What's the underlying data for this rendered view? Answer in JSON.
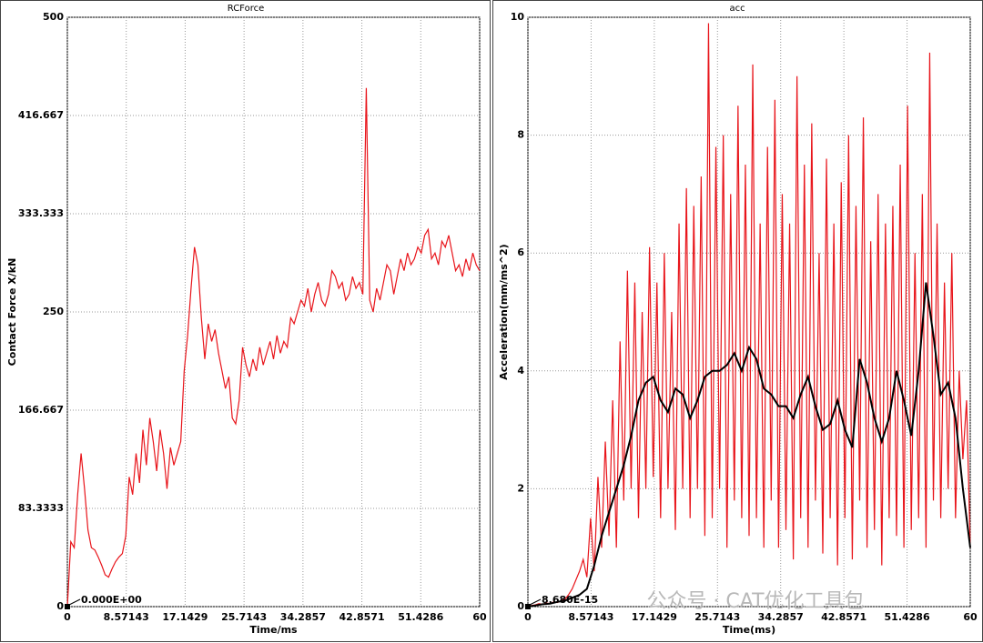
{
  "chart_data": [
    {
      "type": "line",
      "title": "RCForce",
      "xlabel": "Time/ms",
      "ylabel": "Contact Force X/kN",
      "annotation": "0.000E+00",
      "xlim": [
        0,
        60
      ],
      "xticks": [
        0,
        8.57143,
        17.1429,
        25.7143,
        34.2857,
        42.8571,
        51.4286,
        60
      ],
      "ylim": [
        0,
        500
      ],
      "yticks": [
        0,
        83.3333,
        166.667,
        250,
        333.333,
        416.667,
        500
      ],
      "grid": true,
      "x": [
        0,
        0.5,
        1,
        1.5,
        2,
        2.5,
        3,
        3.5,
        4,
        4.5,
        5,
        5.5,
        6,
        6.5,
        7,
        7.5,
        8,
        8.5,
        9,
        9.5,
        10,
        10.5,
        11,
        11.5,
        12,
        12.5,
        13,
        13.5,
        14,
        14.5,
        15,
        15.5,
        16,
        16.5,
        17,
        17.5,
        18,
        18.5,
        19,
        19.5,
        20,
        20.5,
        21,
        21.5,
        22,
        22.5,
        23,
        23.5,
        24,
        24.5,
        25,
        25.5,
        26,
        26.5,
        27,
        27.5,
        28,
        28.5,
        29,
        29.5,
        30,
        30.5,
        31,
        31.5,
        32,
        32.5,
        33,
        33.5,
        34,
        34.5,
        35,
        35.5,
        36,
        36.5,
        37,
        37.5,
        38,
        38.5,
        39,
        39.5,
        40,
        40.5,
        41,
        41.5,
        42,
        42.5,
        43,
        43.5,
        44,
        44.5,
        45,
        45.5,
        46,
        46.5,
        47,
        47.5,
        48,
        48.5,
        49,
        49.5,
        50,
        50.5,
        51,
        51.5,
        52,
        52.5,
        53,
        53.5,
        54,
        54.5,
        55,
        55.5,
        56,
        56.5,
        57,
        57.5,
        58,
        58.5,
        59,
        59.5,
        60
      ],
      "series": [
        {
          "color": "#e8141a",
          "values": [
            0,
            55,
            50,
            95,
            130,
            100,
            65,
            50,
            48,
            42,
            35,
            27,
            25,
            32,
            38,
            42,
            45,
            60,
            110,
            95,
            130,
            105,
            150,
            120,
            160,
            140,
            115,
            150,
            130,
            100,
            135,
            120,
            130,
            140,
            200,
            230,
            270,
            305,
            290,
            245,
            210,
            240,
            225,
            235,
            215,
            200,
            185,
            195,
            160,
            155,
            175,
            220,
            205,
            195,
            210,
            200,
            220,
            205,
            215,
            225,
            210,
            230,
            215,
            225,
            220,
            245,
            240,
            250,
            260,
            255,
            270,
            250,
            265,
            275,
            260,
            255,
            265,
            285,
            280,
            270,
            275,
            260,
            265,
            280,
            270,
            275,
            265,
            440,
            260,
            250,
            270,
            260,
            275,
            290,
            285,
            265,
            280,
            295,
            285,
            300,
            290,
            295,
            305,
            300,
            315,
            320,
            295,
            300,
            290,
            310,
            305,
            315,
            300,
            285,
            290,
            280,
            295,
            285,
            300,
            290,
            285
          ]
        }
      ]
    },
    {
      "type": "line",
      "title": "acc",
      "xlabel": "Time(ms)",
      "ylabel": "Acceleration(mm/ms^2)",
      "annotation": "8.680E-15",
      "xlim": [
        0,
        60
      ],
      "xticks": [
        0,
        8.57143,
        17.1429,
        25.7143,
        34.2857,
        42.8571,
        51.4286,
        60
      ],
      "ylim": [
        0,
        10
      ],
      "yticks": [
        0,
        2,
        4,
        6,
        8,
        10
      ],
      "grid": true,
      "x": [
        0,
        0.5,
        1,
        1.5,
        2,
        2.5,
        3,
        3.5,
        4,
        4.5,
        5,
        5.5,
        6,
        6.5,
        7,
        7.5,
        8,
        8.5,
        9,
        9.5,
        10,
        10.5,
        11,
        11.5,
        12,
        12.5,
        13,
        13.5,
        14,
        14.5,
        15,
        15.5,
        16,
        16.5,
        17,
        17.5,
        18,
        18.5,
        19,
        19.5,
        20,
        20.5,
        21,
        21.5,
        22,
        22.5,
        23,
        23.5,
        24,
        24.5,
        25,
        25.5,
        26,
        26.5,
        27,
        27.5,
        28,
        28.5,
        29,
        29.5,
        30,
        30.5,
        31,
        31.5,
        32,
        32.5,
        33,
        33.5,
        34,
        34.5,
        35,
        35.5,
        36,
        36.5,
        37,
        37.5,
        38,
        38.5,
        39,
        39.5,
        40,
        40.5,
        41,
        41.5,
        42,
        42.5,
        43,
        43.5,
        44,
        44.5,
        45,
        45.5,
        46,
        46.5,
        47,
        47.5,
        48,
        48.5,
        49,
        49.5,
        50,
        50.5,
        51,
        51.5,
        52,
        52.5,
        53,
        53.5,
        54,
        54.5,
        55,
        55.5,
        56,
        56.5,
        57,
        57.5,
        58,
        58.5,
        59,
        59.5,
        60
      ],
      "series": [
        {
          "color": "#e8141a",
          "values": [
            0,
            0.02,
            0.03,
            0.05,
            0.04,
            0.06,
            0.05,
            0.08,
            0.07,
            0.1,
            0.12,
            0.2,
            0.3,
            0.45,
            0.6,
            0.8,
            0.5,
            1.5,
            0.6,
            2.2,
            1.0,
            2.8,
            1.2,
            3.5,
            1.0,
            4.5,
            1.8,
            5.7,
            2.0,
            5.5,
            1.5,
            5.0,
            2.0,
            6.1,
            2.2,
            5.5,
            1.5,
            6.0,
            2.0,
            5.0,
            1.3,
            6.5,
            2.0,
            7.1,
            1.5,
            6.8,
            2.0,
            7.3,
            1.2,
            9.9,
            1.5,
            7.8,
            2.0,
            8.0,
            1.0,
            7.0,
            1.8,
            8.5,
            1.5,
            7.5,
            1.2,
            9.2,
            1.5,
            6.5,
            1.0,
            7.8,
            1.8,
            8.6,
            1.0,
            7.0,
            1.3,
            6.5,
            0.8,
            9.0,
            1.5,
            7.5,
            1.0,
            8.2,
            1.8,
            6.0,
            0.9,
            7.6,
            1.5,
            6.5,
            0.7,
            7.2,
            1.5,
            8.0,
            0.8,
            6.8,
            1.8,
            8.3,
            1.0,
            6.2,
            1.3,
            7.0,
            0.7,
            6.5,
            1.5,
            6.8,
            1.2,
            7.5,
            1.0,
            8.5,
            1.3,
            6.0,
            1.5,
            7.0,
            1.0,
            9.4,
            1.8,
            6.5,
            1.5,
            5.5,
            2.0,
            6.0,
            1.5,
            4.0,
            2.5,
            3.5,
            1.0
          ]
        },
        {
          "color": "#000000",
          "x": [
            0,
            1,
            2,
            3,
            4,
            5,
            6,
            7,
            8,
            9,
            10,
            11,
            12,
            13,
            14,
            15,
            16,
            17,
            18,
            19,
            20,
            21,
            22,
            23,
            24,
            25,
            26,
            27,
            28,
            29,
            30,
            31,
            32,
            33,
            34,
            35,
            36,
            37,
            38,
            39,
            40,
            41,
            42,
            43,
            44,
            45,
            46,
            47,
            48,
            49,
            50,
            51,
            52,
            53,
            54,
            55,
            56,
            57,
            58,
            59,
            60
          ],
          "values": [
            0,
            0.02,
            0.04,
            0.05,
            0.08,
            0.1,
            0.15,
            0.2,
            0.3,
            0.7,
            1.2,
            1.6,
            2.0,
            2.4,
            2.9,
            3.5,
            3.8,
            3.9,
            3.5,
            3.3,
            3.7,
            3.6,
            3.2,
            3.5,
            3.9,
            4.0,
            4.0,
            4.1,
            4.3,
            4.0,
            4.4,
            4.2,
            3.7,
            3.6,
            3.4,
            3.4,
            3.2,
            3.6,
            3.9,
            3.4,
            3.0,
            3.1,
            3.5,
            3.0,
            2.7,
            4.2,
            3.8,
            3.2,
            2.8,
            3.2,
            4.0,
            3.5,
            2.9,
            4.0,
            5.5,
            4.6,
            3.6,
            3.8,
            3.2,
            2.0,
            1.0
          ]
        }
      ]
    }
  ],
  "watermark": "公众号 · CAT优化工具包"
}
